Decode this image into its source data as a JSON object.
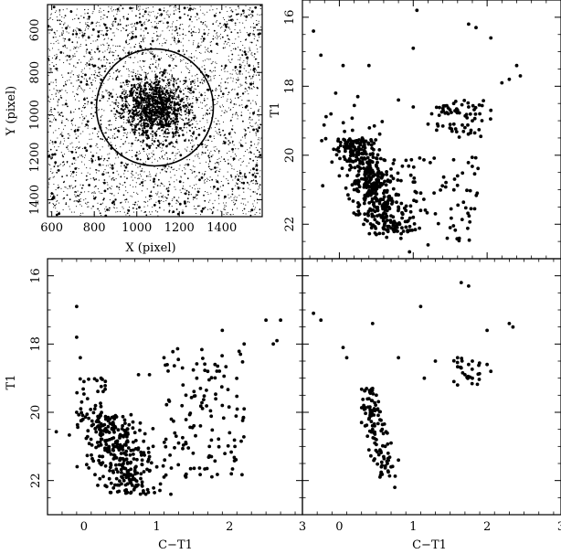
{
  "chart_data": [
    {
      "type": "scatter",
      "panel": "field-map",
      "xlabel": "X (pixel)",
      "ylabel": "Y (pixel)",
      "xlim": [
        580,
        1590
      ],
      "ylim": [
        1480,
        480
      ],
      "xticks": [
        600,
        800,
        1000,
        1200,
        1400
      ],
      "yticks": [
        600,
        800,
        1000,
        1200,
        1400
      ],
      "cluster_center": [
        1085,
        965
      ],
      "circle_radius": 275,
      "description_points": "dense stellar field with central concentration",
      "sample_points": [
        [
          1085,
          965
        ],
        [
          1060,
          940
        ],
        [
          1110,
          990
        ],
        [
          1040,
          1000
        ],
        [
          1130,
          930
        ],
        [
          980,
          900
        ],
        [
          1180,
          1040
        ],
        [
          700,
          620
        ],
        [
          1450,
          1350
        ],
        [
          820,
          1200
        ],
        [
          1350,
          700
        ],
        [
          900,
          1400
        ],
        [
          1500,
          900
        ],
        [
          650,
          1100
        ],
        [
          1250,
          550
        ]
      ]
    },
    {
      "type": "scatter",
      "panel": "cmd-cluster",
      "xlabel": "",
      "ylabel": "T1",
      "xlim": [
        -0.5,
        3
      ],
      "ylim": [
        23,
        15.5
      ],
      "yticks": [
        16,
        18,
        20,
        22
      ],
      "sample_points": [
        [
          -0.35,
          16.4
        ],
        [
          -0.25,
          17.1
        ],
        [
          0.05,
          17.4
        ],
        [
          0.4,
          17.4
        ],
        [
          1.05,
          15.8
        ],
        [
          1.0,
          16.9
        ],
        [
          1.75,
          16.2
        ],
        [
          1.85,
          16.3
        ],
        [
          2.05,
          16.6
        ],
        [
          2.4,
          17.4
        ],
        [
          2.45,
          17.7
        ],
        [
          2.3,
          17.8
        ],
        [
          2.2,
          17.9
        ],
        [
          -0.05,
          18.2
        ],
        [
          0.25,
          18.3
        ],
        [
          0.8,
          18.4
        ],
        [
          1.0,
          18.6
        ],
        [
          1.6,
          18.7
        ],
        [
          1.75,
          18.6
        ],
        [
          1.9,
          18.8
        ],
        [
          2.05,
          18.7
        ],
        [
          1.55,
          19.1
        ],
        [
          1.7,
          19.2
        ],
        [
          1.8,
          19.0
        ],
        [
          1.2,
          19.1
        ],
        [
          1.25,
          18.8
        ],
        [
          0.3,
          19.6
        ],
        [
          0.35,
          19.9
        ],
        [
          0.4,
          20.2
        ],
        [
          0.45,
          20.5
        ],
        [
          0.35,
          20.7
        ],
        [
          0.5,
          20.9
        ],
        [
          0.6,
          21.1
        ],
        [
          0.7,
          21.3
        ],
        [
          0.8,
          21.5
        ],
        [
          0.9,
          21.6
        ],
        [
          1.0,
          21.8
        ],
        [
          1.1,
          21.6
        ],
        [
          1.3,
          21.7
        ],
        [
          1.5,
          22.1
        ],
        [
          0.6,
          21.9
        ],
        [
          0.5,
          22.3
        ],
        [
          0.8,
          22.0
        ],
        [
          0.2,
          21.0
        ],
        [
          0.0,
          20.6
        ],
        [
          -0.1,
          20.2
        ],
        [
          0.7,
          20.4
        ],
        [
          1.6,
          20.6
        ],
        [
          1.2,
          22.6
        ],
        [
          0.95,
          22.8
        ]
      ]
    },
    {
      "type": "scatter",
      "panel": "cmd-field",
      "xlabel": "C−T1",
      "ylabel": "T1",
      "xlim": [
        -0.5,
        3
      ],
      "ylim": [
        23,
        15.5
      ],
      "xticks": [
        0,
        1,
        2,
        3
      ],
      "yticks": [
        16,
        18,
        20,
        22
      ],
      "sample_points": [
        [
          -0.1,
          16.9
        ],
        [
          -0.1,
          17.8
        ],
        [
          -0.05,
          18.4
        ],
        [
          0.75,
          18.9
        ],
        [
          0.9,
          18.9
        ],
        [
          1.1,
          18.4
        ],
        [
          1.9,
          17.6
        ],
        [
          2.5,
          17.3
        ],
        [
          2.7,
          17.3
        ],
        [
          2.65,
          17.9
        ],
        [
          2.6,
          18.0
        ],
        [
          2.2,
          18.0
        ],
        [
          2.15,
          18.3
        ],
        [
          1.8,
          18.6
        ],
        [
          1.7,
          18.8
        ],
        [
          1.55,
          19.0
        ],
        [
          1.6,
          19.3
        ],
        [
          1.4,
          19.5
        ],
        [
          1.9,
          19.8
        ],
        [
          2.2,
          19.9
        ],
        [
          0.0,
          19.1
        ],
        [
          0.05,
          19.6
        ],
        [
          0.15,
          19.9
        ],
        [
          0.3,
          20.2
        ],
        [
          0.4,
          20.5
        ],
        [
          0.35,
          20.8
        ],
        [
          0.45,
          21.0
        ],
        [
          0.55,
          21.2
        ],
        [
          0.6,
          21.5
        ],
        [
          0.7,
          21.7
        ],
        [
          0.8,
          21.4
        ],
        [
          0.9,
          21.3
        ],
        [
          1.0,
          21.6
        ],
        [
          1.1,
          21.9
        ],
        [
          0.7,
          22.2
        ],
        [
          0.55,
          22.0
        ],
        [
          0.85,
          22.4
        ],
        [
          1.05,
          22.1
        ],
        [
          1.4,
          21.9
        ],
        [
          1.5,
          21.2
        ],
        [
          1.3,
          20.9
        ],
        [
          1.2,
          20.2
        ],
        [
          1.6,
          20.4
        ],
        [
          2.0,
          20.6
        ],
        [
          0.2,
          20.4
        ],
        [
          -0.1,
          20.0
        ],
        [
          0.25,
          21.3
        ],
        [
          1.75,
          21.3
        ],
        [
          0.95,
          21.0
        ],
        [
          0.6,
          20.6
        ]
      ]
    },
    {
      "type": "scatter",
      "panel": "cmd-decontaminated",
      "xlabel": "C−T1",
      "ylabel": "",
      "xlim": [
        -0.5,
        3
      ],
      "ylim": [
        23,
        15.5
      ],
      "xticks": [
        0,
        1,
        2,
        3
      ],
      "sample_points": [
        [
          -0.35,
          17.1
        ],
        [
          -0.25,
          17.3
        ],
        [
          0.05,
          18.1
        ],
        [
          0.1,
          18.4
        ],
        [
          0.45,
          17.4
        ],
        [
          1.1,
          16.9
        ],
        [
          1.65,
          16.2
        ],
        [
          1.75,
          16.3
        ],
        [
          2.0,
          17.6
        ],
        [
          2.3,
          17.4
        ],
        [
          2.35,
          17.5
        ],
        [
          1.3,
          18.5
        ],
        [
          1.6,
          18.4
        ],
        [
          1.65,
          18.7
        ],
        [
          1.7,
          18.9
        ],
        [
          1.75,
          18.6
        ],
        [
          1.55,
          19.1
        ],
        [
          1.6,
          19.2
        ],
        [
          1.8,
          19.0
        ],
        [
          1.8,
          18.5
        ],
        [
          2.0,
          18.6
        ],
        [
          2.05,
          18.8
        ],
        [
          1.15,
          19.0
        ],
        [
          0.8,
          18.4
        ],
        [
          0.45,
          19.3
        ],
        [
          0.4,
          19.6
        ],
        [
          0.35,
          19.9
        ],
        [
          0.4,
          20.2
        ],
        [
          0.45,
          20.5
        ],
        [
          0.38,
          20.7
        ],
        [
          0.3,
          20.3
        ],
        [
          0.42,
          20.0
        ],
        [
          0.5,
          20.8
        ],
        [
          0.55,
          21.1
        ],
        [
          0.6,
          21.3
        ],
        [
          0.65,
          21.5
        ],
        [
          0.7,
          21.6
        ],
        [
          0.75,
          22.2
        ],
        [
          0.55,
          21.9
        ],
        [
          0.8,
          21.4
        ],
        [
          0.35,
          20.4
        ],
        [
          0.48,
          20.9
        ],
        [
          0.62,
          21.0
        ],
        [
          0.7,
          20.9
        ],
        [
          0.4,
          21.1
        ],
        [
          0.33,
          19.8
        ],
        [
          0.5,
          19.5
        ],
        [
          0.52,
          19.9
        ],
        [
          0.58,
          20.5
        ],
        [
          0.66,
          21.2
        ]
      ]
    }
  ]
}
